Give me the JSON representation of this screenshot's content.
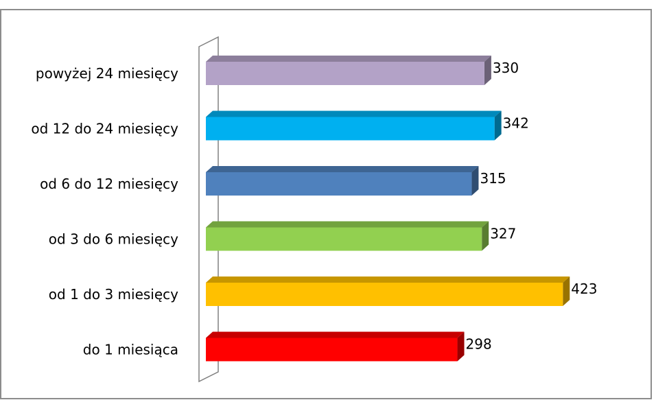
{
  "chart_data": {
    "type": "bar",
    "orientation": "horizontal",
    "style": "3d",
    "categories": [
      "powyżej 24 miesięcy",
      "od 12 do 24 miesięcy",
      "od 6 do 12 miesięcy",
      "od 3 do 6 miesięcy",
      "od 1 do 3 miesięcy",
      "do 1 miesiąca"
    ],
    "values": [
      330,
      342,
      315,
      327,
      423,
      298
    ],
    "colors": [
      "#b3a2c7",
      "#00b0f0",
      "#4f81bd",
      "#92d050",
      "#ffc000",
      "#ff0000"
    ],
    "title": "",
    "xlabel": "",
    "ylabel": "",
    "xlim": [
      0,
      450
    ],
    "grid": false,
    "legend": "none",
    "data_labels": true
  }
}
